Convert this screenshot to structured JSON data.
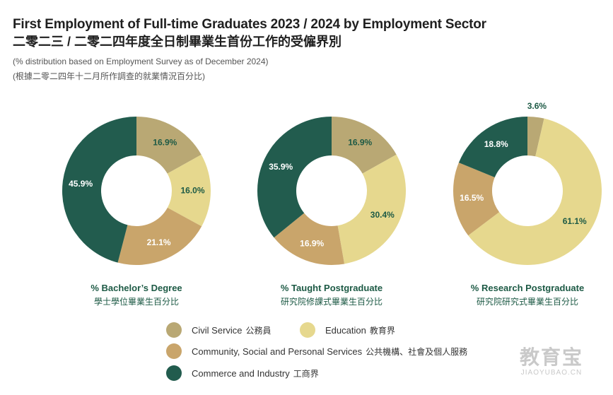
{
  "header": {
    "title_en": "First Employment of Full-time Graduates 2023 / 2024 by Employment Sector",
    "title_zh": "二零二三 / 二零二四年度全日制畢業生首份工作的受僱界別",
    "subtitle_en": "(% distribution based on Employment Survey as of December 2024)",
    "subtitle_zh": "(根據二零二四年十二月所作調查的就業情況百分比)"
  },
  "colors": {
    "civil_service": "#b9a874",
    "education": "#e6d88e",
    "community": "#c9a56b",
    "commerce": "#225c4e"
  },
  "chart_data": [
    {
      "type": "pie",
      "donut": true,
      "title_en": "% Bachelor’s Degree",
      "title_zh": "學士學位畢業生百分比",
      "labels": [
        "Civil Service",
        "Education",
        "Community, Social and Personal Services",
        "Commerce and Industry"
      ],
      "values": [
        16.9,
        16.0,
        21.1,
        45.9
      ],
      "value_labels": [
        "16.9%",
        "16.0%",
        "21.1%",
        "45.9%"
      ]
    },
    {
      "type": "pie",
      "donut": true,
      "title_en": "% Taught Postgraduate",
      "title_zh": "研究院修課式畢業生百分比",
      "labels": [
        "Civil Service",
        "Education",
        "Community, Social and Personal Services",
        "Commerce and Industry"
      ],
      "values": [
        16.9,
        30.4,
        16.9,
        35.9
      ],
      "value_labels": [
        "16.9%",
        "30.4%",
        "16.9%",
        "35.9%"
      ]
    },
    {
      "type": "pie",
      "donut": true,
      "title_en": "% Research Postgraduate",
      "title_zh": "研究院研究式畢業生百分比",
      "labels": [
        "Civil Service",
        "Education",
        "Community, Social and Personal Services",
        "Commerce and Industry"
      ],
      "values": [
        3.6,
        61.1,
        16.5,
        18.8
      ],
      "value_labels": [
        "3.6%",
        "61.1%",
        "16.5%",
        "18.8%"
      ]
    }
  ],
  "legend": [
    {
      "key": "civil_service",
      "en": "Civil Service",
      "zh": "公務員"
    },
    {
      "key": "education",
      "en": "Education",
      "zh": "教育界"
    },
    {
      "key": "community",
      "en": "Community, Social and Personal Services",
      "zh": "公共機構、社會及個人服務"
    },
    {
      "key": "commerce",
      "en": "Commerce and Industry",
      "zh": "工商界"
    }
  ],
  "watermark": {
    "zh": "教育宝",
    "en": "JIAOYUBAO.CN"
  }
}
